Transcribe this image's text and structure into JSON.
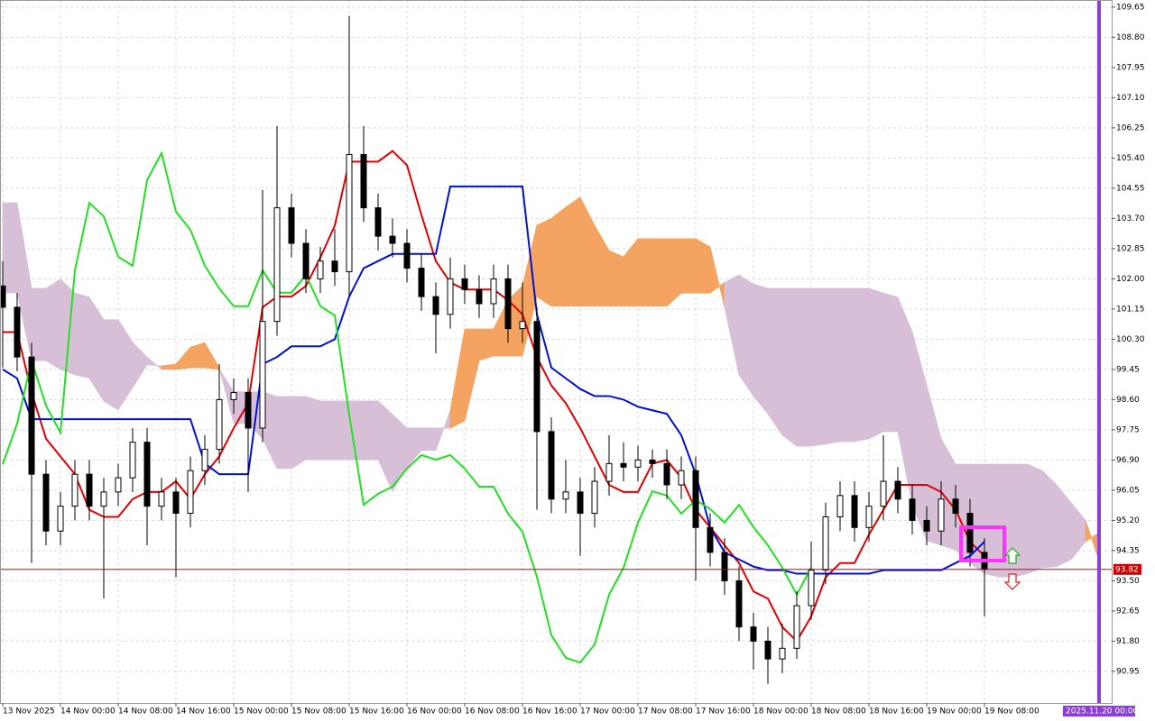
{
  "chart_data": {
    "type": "candlestick",
    "categories": [
      "13 Nov 2025",
      null,
      null,
      null,
      "14 Nov 00:00",
      null,
      null,
      null,
      "14 Nov 08:00",
      null,
      null,
      null,
      "14 Nov 16:00",
      null,
      null,
      null,
      "15 Nov 00:00",
      null,
      null,
      null,
      "15 Nov 08:00",
      null,
      null,
      null,
      "15 Nov 16:00",
      null,
      null,
      null,
      "16 Nov 00:00",
      null,
      null,
      null,
      "16 Nov 08:00",
      null,
      null,
      null,
      "16 Nov 16:00",
      null,
      null,
      null,
      "17 Nov 00:00",
      null,
      null,
      null,
      "17 Nov 08:00",
      null,
      null,
      null,
      "17 Nov 16:00",
      null,
      null,
      null,
      "18 Nov 00:00",
      null,
      null,
      null,
      "18 Nov 08:00",
      null,
      null,
      null,
      "18 Nov 16:00",
      null,
      null,
      null,
      "19 Nov 00:00",
      null,
      null,
      null,
      "19 Nov 08:00",
      null,
      null,
      null,
      null,
      null,
      null,
      null,
      null
    ],
    "candles": [
      [
        101.8,
        102.5,
        99.5,
        101.2
      ],
      [
        101.2,
        101.6,
        99.4,
        99.8
      ],
      [
        99.8,
        100.2,
        94.0,
        96.5
      ],
      [
        96.5,
        96.9,
        94.5,
        94.9
      ],
      [
        94.9,
        96.0,
        94.5,
        95.6
      ],
      [
        95.6,
        96.9,
        95.2,
        96.5
      ],
      [
        96.5,
        96.9,
        95.2,
        95.6
      ],
      [
        95.6,
        96.4,
        93.0,
        96.0
      ],
      [
        96.0,
        96.8,
        95.6,
        96.4
      ],
      [
        96.4,
        97.8,
        96.0,
        97.4
      ],
      [
        97.4,
        97.8,
        94.5,
        95.6
      ],
      [
        95.6,
        96.4,
        95.2,
        96.0
      ],
      [
        96.0,
        96.4,
        93.6,
        95.4
      ],
      [
        95.4,
        97.0,
        95.0,
        96.6
      ],
      [
        96.6,
        97.6,
        96.2,
        97.2
      ],
      [
        97.2,
        99.6,
        96.8,
        98.6
      ],
      [
        98.6,
        99.2,
        98.2,
        98.8
      ],
      [
        98.8,
        99.2,
        96.0,
        97.8
      ],
      [
        97.8,
        104.5,
        97.4,
        100.8
      ],
      [
        100.8,
        106.3,
        100.4,
        104.0
      ],
      [
        104.0,
        104.4,
        102.6,
        103.0
      ],
      [
        103.0,
        103.4,
        101.6,
        102.0
      ],
      [
        102.0,
        102.9,
        101.6,
        102.5
      ],
      [
        102.5,
        103.4,
        101.8,
        102.2
      ],
      [
        102.2,
        109.4,
        101.5,
        105.5
      ],
      [
        105.5,
        106.3,
        103.6,
        104.0
      ],
      [
        104.0,
        104.4,
        102.8,
        103.2
      ],
      [
        103.2,
        103.7,
        102.6,
        103.0
      ],
      [
        103.0,
        103.4,
        101.9,
        102.3
      ],
      [
        102.3,
        102.7,
        101.1,
        101.5
      ],
      [
        101.5,
        101.9,
        99.9,
        101.0
      ],
      [
        101.0,
        102.6,
        100.6,
        102.0
      ],
      [
        102.0,
        102.4,
        101.3,
        101.7
      ],
      [
        101.7,
        102.1,
        100.9,
        101.3
      ],
      [
        101.3,
        102.4,
        100.9,
        102.0
      ],
      [
        102.0,
        102.4,
        100.2,
        100.6
      ],
      [
        100.6,
        101.9,
        100.2,
        100.8
      ],
      [
        100.8,
        101.2,
        95.5,
        97.7
      ],
      [
        97.7,
        98.1,
        95.4,
        95.8
      ],
      [
        95.8,
        96.9,
        95.4,
        96.0
      ],
      [
        96.0,
        96.4,
        94.2,
        95.4
      ],
      [
        95.4,
        96.7,
        95.0,
        96.3
      ],
      [
        96.3,
        97.6,
        95.9,
        96.8
      ],
      [
        96.8,
        97.4,
        96.3,
        96.7
      ],
      [
        96.7,
        97.3,
        96.3,
        96.9
      ],
      [
        96.9,
        97.2,
        96.4,
        96.8
      ],
      [
        96.8,
        97.2,
        95.8,
        96.2
      ],
      [
        96.2,
        97.0,
        95.8,
        96.6
      ],
      [
        96.6,
        97.0,
        93.5,
        95.0
      ],
      [
        95.0,
        95.4,
        93.9,
        94.3
      ],
      [
        94.3,
        94.7,
        93.1,
        93.5
      ],
      [
        93.5,
        93.9,
        91.8,
        92.2
      ],
      [
        92.2,
        92.6,
        91.0,
        91.8
      ],
      [
        91.8,
        92.2,
        90.6,
        91.3
      ],
      [
        91.3,
        92.3,
        90.9,
        91.6
      ],
      [
        91.6,
        93.2,
        91.3,
        92.8
      ],
      [
        92.8,
        94.6,
        92.4,
        93.8
      ],
      [
        93.8,
        95.7,
        93.4,
        95.3
      ],
      [
        95.3,
        96.3,
        94.9,
        95.9
      ],
      [
        95.9,
        96.3,
        94.6,
        95.0
      ],
      [
        95.0,
        96.0,
        94.6,
        95.6
      ],
      [
        95.6,
        97.6,
        95.2,
        96.3
      ],
      [
        96.3,
        96.7,
        95.4,
        95.8
      ],
      [
        95.8,
        96.2,
        94.8,
        95.2
      ],
      [
        95.2,
        95.6,
        94.5,
        94.9
      ],
      [
        94.9,
        96.3,
        94.5,
        95.8
      ],
      [
        95.8,
        96.2,
        95.0,
        95.4
      ],
      [
        95.4,
        95.8,
        93.9,
        94.3
      ],
      [
        94.3,
        94.7,
        92.5,
        93.82
      ],
      null,
      null,
      null,
      null,
      null,
      null,
      null,
      null
    ],
    "bull_color": "#ffffff",
    "bear_color": "#000000",
    "series": [
      {
        "color": "#e00000",
        "values": [
          100.5,
          100.5,
          98.8,
          97.5,
          97.0,
          96.5,
          95.5,
          95.3,
          95.3,
          95.8,
          96.0,
          96.0,
          96.3,
          95.8,
          96.5,
          97.0,
          97.8,
          98.5,
          101.2,
          101.5,
          101.5,
          101.8,
          102.6,
          103.5,
          105.3,
          105.3,
          105.3,
          105.6,
          105.2,
          103.8,
          102.5,
          101.9,
          101.7,
          101.7,
          101.7,
          101.4,
          101.0,
          99.8,
          99.0,
          98.5,
          97.8,
          97.0,
          96.2,
          96.0,
          96.0,
          96.8,
          96.9,
          96.4,
          95.5,
          95.0,
          94.5,
          94.0,
          93.2,
          93.0,
          92.2,
          91.8,
          92.5,
          93.6,
          94.0,
          94.0,
          94.8,
          95.5,
          96.2,
          96.2,
          96.2,
          96.0,
          95.5,
          94.6,
          94.2,
          null,
          null,
          null,
          null,
          null,
          null,
          null,
          null
        ]
      },
      {
        "color": "#0010d0",
        "values": [
          99.45,
          99.2,
          98.05,
          98.05,
          98.05,
          98.05,
          98.05,
          98.05,
          98.05,
          98.05,
          98.05,
          98.05,
          98.05,
          98.05,
          96.8,
          96.5,
          96.5,
          96.5,
          99.6,
          99.8,
          100.1,
          100.1,
          100.1,
          100.3,
          101.5,
          102.3,
          102.5,
          102.7,
          102.7,
          102.7,
          102.7,
          104.6,
          104.6,
          104.6,
          104.6,
          104.6,
          104.6,
          101.0,
          99.5,
          99.2,
          98.9,
          98.7,
          98.7,
          98.6,
          98.4,
          98.3,
          98.2,
          97.6,
          96.5,
          95.0,
          94.3,
          94.1,
          93.9,
          93.8,
          93.8,
          93.7,
          93.7,
          93.7,
          93.7,
          93.7,
          93.7,
          93.8,
          93.8,
          93.8,
          93.8,
          93.8,
          94.0,
          94.2,
          94.6,
          null,
          null,
          null,
          null,
          null,
          null,
          null,
          null
        ]
      },
      {
        "color": "#22e022",
        "values": [
          96.78,
          97.93,
          99.7,
          98.43,
          97.67,
          102.24,
          104.14,
          103.76,
          102.62,
          102.37,
          104.78,
          105.54,
          103.89,
          103.38,
          102.37,
          101.73,
          101.23,
          101.23,
          102.24,
          101.61,
          101.61,
          102.11,
          101.23,
          100.97,
          98.18,
          95.64,
          95.95,
          96.15,
          96.66,
          97.04,
          96.91,
          97.04,
          96.66,
          96.15,
          96.15,
          95.39,
          94.88,
          93.61,
          91.97,
          91.33,
          91.2,
          91.71,
          93.11,
          93.87,
          95.14,
          96.02,
          95.9,
          95.39,
          95.77,
          95.52,
          95.14,
          95.64,
          95.01,
          94.5,
          93.87,
          93.11,
          93.87,
          null,
          null,
          null,
          null,
          null,
          null,
          null,
          null,
          null,
          null,
          null,
          null,
          null,
          null,
          null,
          null,
          null,
          null,
          null,
          null
        ]
      }
    ],
    "cloud": {
      "span_a": [
        101.61,
        101.61,
        99.7,
        99.7,
        99.45,
        99.3,
        99.2,
        98.56,
        98.31,
        98.94,
        99.58,
        99.55,
        99.6,
        100.08,
        100.2,
        99.5,
        97.93,
        97.93,
        97.5,
        96.66,
        96.66,
        96.91,
        96.91,
        96.91,
        96.91,
        96.91,
        96.91,
        96.02,
        96.7,
        97.17,
        97.17,
        98.3,
        100.59,
        100.59,
        100.59,
        101.4,
        101.8,
        103.51,
        103.7,
        104.02,
        104.3,
        103.5,
        102.8,
        102.62,
        103.13,
        103.13,
        103.13,
        103.13,
        103.13,
        102.9,
        101.2,
        99.3,
        98.7,
        98.2,
        97.6,
        97.29,
        97.29,
        97.35,
        97.42,
        97.42,
        97.5,
        97.7,
        97.7,
        95.64,
        94.63,
        94.5,
        94.37,
        94.0,
        93.7,
        93.61,
        93.61,
        93.7,
        93.87,
        93.9,
        94.1,
        94.6,
        94.88
      ],
      "span_b": [
        104.14,
        104.14,
        101.73,
        101.73,
        101.99,
        101.6,
        101.48,
        100.85,
        100.85,
        100.21,
        99.8,
        99.45,
        99.45,
        99.5,
        99.5,
        99.45,
        98.82,
        98.82,
        98.82,
        98.69,
        98.69,
        98.69,
        98.56,
        98.56,
        98.56,
        98.56,
        98.56,
        98.18,
        97.8,
        97.8,
        97.8,
        97.8,
        98.0,
        99.7,
        99.83,
        99.83,
        99.83,
        101.5,
        101.23,
        101.23,
        101.23,
        101.23,
        101.23,
        101.23,
        101.23,
        101.23,
        101.23,
        101.6,
        101.6,
        101.6,
        101.9,
        102.11,
        101.85,
        101.73,
        101.73,
        101.73,
        101.73,
        101.73,
        101.73,
        101.73,
        101.73,
        101.6,
        101.48,
        100.5,
        99.0,
        97.5,
        96.78,
        96.78,
        96.78,
        96.78,
        96.78,
        96.78,
        96.6,
        96.2,
        95.7,
        95.2,
        94.0
      ],
      "bull_color": "#f4a460",
      "bear_color": "#d8bfd8"
    },
    "ylim": [
      90.06,
      109.85
    ],
    "yticks": [
      109.65,
      {
        "value": 108.8,
        "label": "108.80"
      },
      107.95,
      {
        "value": 107.1,
        "label": "107.10"
      },
      106.25,
      {
        "value": 105.4,
        "label": "105.40"
      },
      104.55,
      {
        "value": 103.7,
        "label": "103.70"
      },
      102.85,
      {
        "value": 102,
        "label": "102.00"
      },
      101.15,
      {
        "value": 100.3,
        "label": "100.30"
      },
      99.45,
      {
        "value": 98.6,
        "label": "98.60"
      },
      97.75,
      {
        "value": 96.9,
        "label": "96.90"
      },
      96.05,
      {
        "value": 95.2,
        "label": "95.20"
      },
      94.35,
      {
        "value": 93.5,
        "label": "93.50"
      },
      92.65,
      {
        "value": 91.8,
        "label": "91.80"
      },
      90.95
    ],
    "grid": true,
    "last_price": 93.82,
    "last_price_color": "#d00000",
    "cursor_label": "2025.11.20 00:00",
    "cursor_color": "#8a3fd8"
  }
}
